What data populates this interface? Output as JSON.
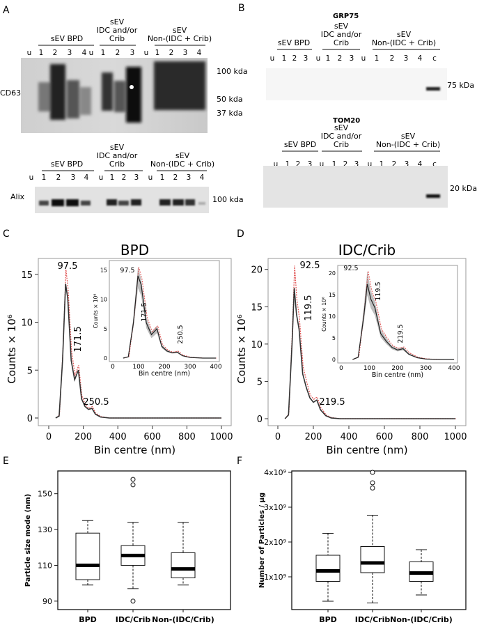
{
  "panels": {
    "A": {
      "letter": "A",
      "blot_top": {
        "groups": [
          "sEV BPD",
          "sEV\nIDC and/or\nCrib",
          "sEV\nNon-(IDC + Crib)"
        ],
        "lanes": [
          "u",
          "1",
          "2",
          "3",
          "4",
          "u",
          "1",
          "2",
          "3",
          "u",
          "1",
          "2",
          "3",
          "4"
        ],
        "row_label": "CD63",
        "markers": [
          "100 kda",
          "50 kda",
          "37 kda"
        ]
      },
      "blot_bottom": {
        "groups": [
          "sEV BPD",
          "sEV\nIDC and/or\nCrib",
          "sEV\nNon-(IDC + Crib)"
        ],
        "lanes": [
          "u",
          "1",
          "2",
          "3",
          "4",
          "u",
          "1",
          "2",
          "3",
          "u",
          "1",
          "2",
          "3",
          "4"
        ],
        "row_label": "Alix",
        "markers": [
          "100 kda"
        ]
      }
    },
    "B": {
      "letter": "B",
      "grp75": {
        "title": "GRP75",
        "groups": [
          "sEV BPD",
          "sEV\nIDC and/or\nCrib",
          "sEV\nNon-(IDC + Crib)"
        ],
        "lanes": [
          "u",
          "1",
          "2",
          "3",
          "u",
          "1",
          "2",
          "3",
          "u",
          "1",
          "2",
          "3",
          "4",
          "c"
        ],
        "markers": [
          "75 kDa"
        ]
      },
      "tom20": {
        "title": "TOM20",
        "groups": [
          "sEV BPD",
          "sEV\nIDC and/or\nCrib",
          "sEV\nNon-(IDC + Crib)"
        ],
        "lanes": [
          "u",
          "1",
          "2",
          "3",
          "u",
          "1",
          "2",
          "3",
          "u",
          "1",
          "2",
          "3",
          "4",
          "c"
        ],
        "markers": [
          "20 kDa"
        ]
      }
    },
    "C": {
      "letter": "C"
    },
    "D": {
      "letter": "D"
    },
    "E": {
      "letter": "E"
    },
    "F": {
      "letter": "F"
    }
  },
  "chart_data": [
    {
      "type": "line",
      "panel": "C",
      "title": "BPD",
      "xlabel": "Bin centre (nm)",
      "ylabel": "Counts × 10⁶",
      "xlim": [
        0,
        1000
      ],
      "ylim": [
        0,
        16
      ],
      "xticks": [
        0,
        200,
        400,
        600,
        800,
        1000
      ],
      "yticks": [
        0,
        5,
        10,
        15
      ],
      "x": [
        40,
        60,
        80,
        97.5,
        110,
        130,
        150,
        171.5,
        190,
        210,
        230,
        250.5,
        270,
        300,
        350,
        400,
        600,
        1000
      ],
      "series": [
        {
          "role": "mean",
          "values": [
            0,
            0.2,
            6,
            14,
            12.5,
            6,
            4,
            5,
            2,
            1.2,
            0.9,
            1,
            0.4,
            0.1,
            0,
            0,
            0,
            0
          ]
        },
        {
          "role": "upper",
          "values": [
            0,
            0.3,
            7,
            15.5,
            13.5,
            7,
            4.5,
            5.5,
            2.3,
            1.4,
            1,
            1.2,
            0.5,
            0.15,
            0,
            0,
            0,
            0
          ]
        }
      ],
      "annotations": [
        "97.5",
        "171.5",
        "250.5"
      ],
      "inset": {
        "xlabel": "Bin centre (nm)",
        "ylabel": "Counts × 10⁶",
        "xlim": [
          0,
          400
        ],
        "ylim": [
          0,
          16
        ],
        "xticks": [
          0,
          100,
          200,
          300,
          400
        ],
        "yticks": [
          0,
          5,
          10,
          15
        ],
        "annotations": [
          "97.5",
          "171.5",
          "250.5"
        ]
      }
    },
    {
      "type": "line",
      "panel": "D",
      "title": "IDC/Crib",
      "xlabel": "Bin centre (nm)",
      "ylabel": "Counts × 10⁶",
      "xlim": [
        0,
        1000
      ],
      "ylim": [
        0,
        21
      ],
      "xticks": [
        0,
        200,
        400,
        600,
        800,
        1000
      ],
      "yticks": [
        0,
        5,
        10,
        15,
        20
      ],
      "x": [
        40,
        60,
        80,
        92.5,
        105,
        119.5,
        140,
        160,
        180,
        200,
        219.5,
        240,
        270,
        300,
        350,
        400,
        600,
        1000
      ],
      "series": [
        {
          "role": "mean",
          "values": [
            0,
            0.5,
            10,
            17.5,
            14,
            12,
            6,
            4.2,
            2.8,
            2.2,
            2.5,
            1.2,
            0.4,
            0.1,
            0,
            0,
            0,
            0
          ]
        },
        {
          "role": "upper",
          "values": [
            0,
            0.7,
            12,
            20.5,
            16,
            13.5,
            7,
            5,
            3.2,
            2.6,
            2.9,
            1.5,
            0.5,
            0.15,
            0,
            0,
            0,
            0
          ]
        }
      ],
      "annotations": [
        "92.5",
        "119.5",
        "219.5"
      ],
      "inset": {
        "xlabel": "Bin centre (nm)",
        "ylabel": "Counts × 10⁶",
        "xlim": [
          0,
          400
        ],
        "ylim": [
          0,
          21
        ],
        "xticks": [
          0,
          100,
          200,
          300,
          400
        ],
        "yticks": [
          0,
          5,
          10,
          15,
          20
        ],
        "annotations": [
          "92.5",
          "119.5",
          "219.5"
        ]
      }
    },
    {
      "type": "box",
      "panel": "E",
      "ylabel": "Particle size mode (nm)",
      "categories": [
        "BPD",
        "IDC/Crib",
        "Non-(IDC/Crib)"
      ],
      "ylim": [
        88,
        160
      ],
      "yticks": [
        90,
        110,
        130,
        150
      ],
      "boxes": [
        {
          "min": 99,
          "q1": 102,
          "median": 110,
          "q3": 128,
          "max": 135,
          "outliers": []
        },
        {
          "min": 97,
          "q1": 110,
          "median": 115.5,
          "q3": 121,
          "max": 134,
          "outliers": [
            90,
            155,
            158
          ]
        },
        {
          "min": 99,
          "q1": 103,
          "median": 108,
          "q3": 117,
          "max": 134,
          "outliers": []
        }
      ]
    },
    {
      "type": "box",
      "panel": "F",
      "ylabel": "Number of Particles / µg",
      "categories": [
        "BPD",
        "IDC/Crib",
        "Non-(IDC/Crib)"
      ],
      "ylim": [
        0,
        4300000000
      ],
      "yticks": [
        1000000000,
        2000000000,
        3000000000,
        4000000000
      ],
      "ytick_labels": [
        "1x10⁹",
        "2x10⁹",
        "3x10⁹",
        "4x10⁹"
      ],
      "boxes": [
        {
          "min": 300000000,
          "q1": 870000000,
          "median": 1170000000,
          "q3": 1620000000,
          "max": 2250000000,
          "outliers": []
        },
        {
          "min": 250000000,
          "q1": 1120000000,
          "median": 1400000000,
          "q3": 1870000000,
          "max": 2770000000,
          "outliers": [
            3550000000,
            3700000000,
            4000000000
          ]
        },
        {
          "min": 480000000,
          "q1": 870000000,
          "median": 1110000000,
          "q3": 1430000000,
          "max": 1780000000,
          "outliers": []
        }
      ]
    }
  ]
}
